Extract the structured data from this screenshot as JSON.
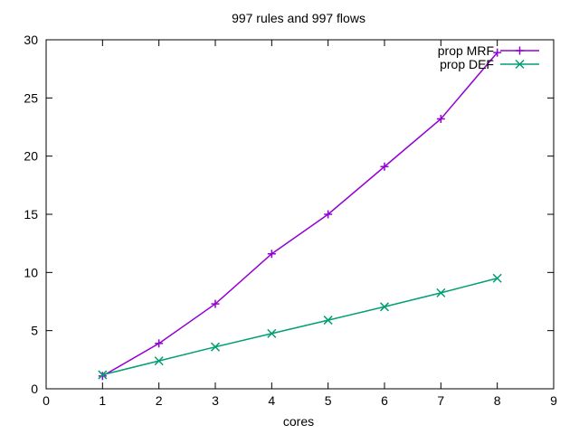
{
  "chart_data": {
    "type": "line",
    "title": "997 rules and 997 flows",
    "xlabel": "cores",
    "ylabel": "",
    "xlim": [
      0,
      9
    ],
    "ylim": [
      0,
      30
    ],
    "xticks": [
      0,
      1,
      2,
      3,
      4,
      5,
      6,
      7,
      8,
      9
    ],
    "yticks": [
      0,
      5,
      10,
      15,
      20,
      25,
      30
    ],
    "grid": false,
    "legend_position": "top-right",
    "series": [
      {
        "name": "prop MRF",
        "color": "#9400d3",
        "marker": "plus",
        "x": [
          1,
          2,
          3,
          4,
          5,
          6,
          7,
          8
        ],
        "y": [
          1.1,
          3.9,
          7.3,
          11.6,
          15.0,
          19.1,
          23.2,
          28.9
        ]
      },
      {
        "name": "prop DEF",
        "color": "#009e73",
        "marker": "cross",
        "x": [
          1,
          2,
          3,
          4,
          5,
          6,
          7,
          8
        ],
        "y": [
          1.2,
          2.4,
          3.6,
          4.75,
          5.9,
          7.05,
          8.25,
          9.5
        ]
      }
    ]
  }
}
